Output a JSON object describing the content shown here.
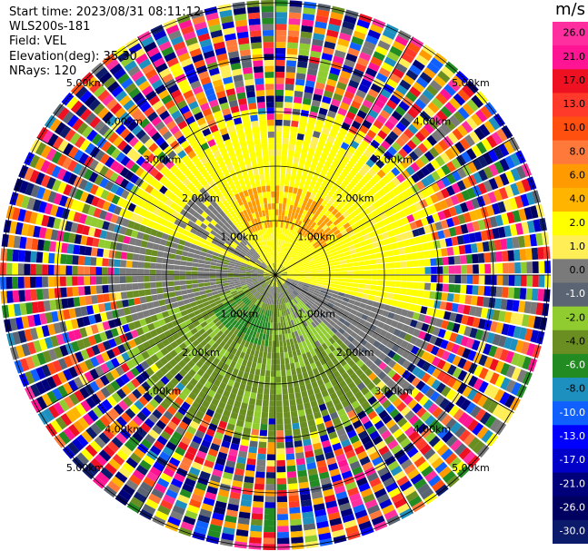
{
  "header": {
    "start_time": "Start time: 2023/08/31 08:11:12",
    "instrument": "WLS200s-181",
    "field": "Field: VEL",
    "elevation": "Elevation(deg): 35.30",
    "nrays": "NRays: 120"
  },
  "colorbar": {
    "unit": "m/s",
    "ticks": [
      "26.0",
      "21.0",
      "17.0",
      "13.0",
      "10.0",
      "8.0",
      "6.0",
      "4.0",
      "2.0",
      "1.0",
      "0.0",
      "-1.0",
      "-2.0",
      "-4.0",
      "-6.0",
      "-8.0",
      "-10.0",
      "-13.0",
      "-17.0",
      "-21.0",
      "-26.0",
      "-30.0"
    ],
    "colors": [
      "#ff2fa0",
      "#ff1493",
      "#ee1122",
      "#ff3a2a",
      "#ff5010",
      "#ff7a3a",
      "#ff9a00",
      "#ffb400",
      "#ffff00",
      "#ffee55",
      "#7a7a7a",
      "#5a6472",
      "#90cc30",
      "#6b8e23",
      "#228b22",
      "#1e90c0",
      "#1060ff",
      "#0000ff",
      "#0000c8",
      "#00007a",
      "#000060",
      "#0b1a6a"
    ]
  },
  "range_labels": [
    {
      "text": "1.00km"
    },
    {
      "text": "1.00km"
    },
    {
      "text": "1.00km"
    },
    {
      "text": "1.00km"
    },
    {
      "text": "2.00km"
    },
    {
      "text": "2.00km"
    },
    {
      "text": "2.00km"
    },
    {
      "text": "2.00km"
    },
    {
      "text": "3.00km"
    },
    {
      "text": "3.00km"
    },
    {
      "text": "3.00km"
    },
    {
      "text": "3.00km"
    },
    {
      "text": "4.00km"
    },
    {
      "text": "4.00km"
    },
    {
      "text": "4.00km"
    },
    {
      "text": "4.00km"
    },
    {
      "text": "5.00km"
    },
    {
      "text": "5.00km"
    },
    {
      "text": "5.00km"
    },
    {
      "text": "5.00km"
    }
  ]
}
